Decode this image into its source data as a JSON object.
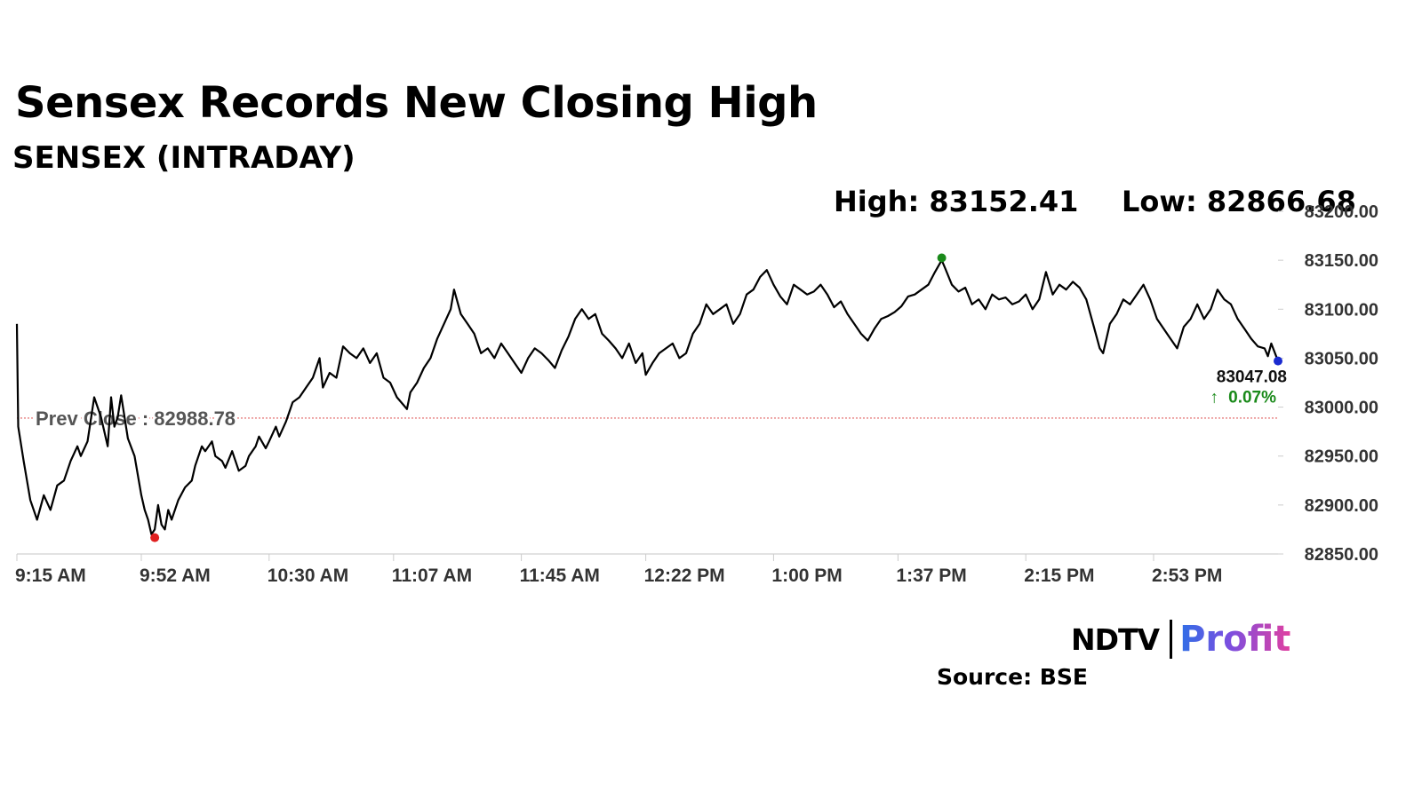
{
  "title": "Sensex Records New Closing High",
  "subtitle": "SENSEX (INTRADAY)",
  "stats": {
    "high": "High: 83152.41",
    "low": "Low: 82866.68"
  },
  "chart_data": {
    "type": "line",
    "series_color": "#000000",
    "y_ticks": [
      "82850.00",
      "82900.00",
      "82950.00",
      "83000.00",
      "83050.00",
      "83100.00",
      "83150.00",
      "83200.00"
    ],
    "ylim": [
      82850,
      83200
    ],
    "x_ticks": [
      "9:15 AM",
      "9:52 AM",
      "10:30 AM",
      "11:07 AM",
      "11:45 AM",
      "12:22 PM",
      "1:00 PM",
      "1:37 PM",
      "2:15 PM",
      "2:53 PM"
    ],
    "x_tick_minutes": [
      0,
      37,
      75,
      112,
      150,
      187,
      225,
      262,
      300,
      338
    ],
    "x_range_minutes": [
      0,
      375
    ],
    "points": [
      [
        0,
        83085
      ],
      [
        0.4,
        82980
      ],
      [
        2,
        82945
      ],
      [
        4,
        82905
      ],
      [
        6,
        82885
      ],
      [
        8,
        82910
      ],
      [
        10,
        82895
      ],
      [
        12,
        82920
      ],
      [
        14,
        82925
      ],
      [
        16,
        82945
      ],
      [
        18,
        82960
      ],
      [
        19,
        82950
      ],
      [
        21,
        82965
      ],
      [
        23,
        83010
      ],
      [
        25,
        82990
      ],
      [
        26,
        82975
      ],
      [
        27,
        82960
      ],
      [
        28,
        83010
      ],
      [
        29,
        82980
      ],
      [
        30,
        82990
      ],
      [
        31,
        83012
      ],
      [
        33,
        82968
      ],
      [
        35,
        82950
      ],
      [
        37,
        82910
      ],
      [
        38,
        82895
      ],
      [
        39,
        82885
      ],
      [
        40,
        82870
      ],
      [
        41,
        82875
      ],
      [
        42,
        82900
      ],
      [
        43,
        82880
      ],
      [
        44,
        82875
      ],
      [
        45,
        82895
      ],
      [
        46,
        82885
      ],
      [
        48,
        82905
      ],
      [
        50,
        82918
      ],
      [
        52,
        82925
      ],
      [
        53,
        82940
      ],
      [
        55,
        82960
      ],
      [
        56,
        82955
      ],
      [
        58,
        82965
      ],
      [
        59,
        82950
      ],
      [
        61,
        82945
      ],
      [
        62,
        82938
      ],
      [
        64,
        82955
      ],
      [
        66,
        82935
      ],
      [
        68,
        82940
      ],
      [
        69,
        82950
      ],
      [
        71,
        82960
      ],
      [
        72,
        82970
      ],
      [
        74,
        82958
      ],
      [
        75,
        82965
      ],
      [
        77,
        82980
      ],
      [
        78,
        82970
      ],
      [
        80,
        82985
      ],
      [
        82,
        83005
      ],
      [
        84,
        83010
      ],
      [
        86,
        83020
      ],
      [
        88,
        83030
      ],
      [
        90,
        83050
      ],
      [
        91,
        83020
      ],
      [
        93,
        83035
      ],
      [
        95,
        83030
      ],
      [
        97,
        83062
      ],
      [
        99,
        83055
      ],
      [
        101,
        83050
      ],
      [
        103,
        83060
      ],
      [
        105,
        83045
      ],
      [
        107,
        83055
      ],
      [
        109,
        83030
      ],
      [
        111,
        83025
      ],
      [
        113,
        83010
      ],
      [
        115,
        83002
      ],
      [
        116,
        82998
      ],
      [
        117,
        83015
      ],
      [
        119,
        83025
      ],
      [
        121,
        83040
      ],
      [
        123,
        83050
      ],
      [
        125,
        83070
      ],
      [
        127,
        83085
      ],
      [
        129,
        83100
      ],
      [
        130,
        83120
      ],
      [
        132,
        83095
      ],
      [
        134,
        83085
      ],
      [
        136,
        83075
      ],
      [
        138,
        83055
      ],
      [
        140,
        83060
      ],
      [
        142,
        83050
      ],
      [
        144,
        83065
      ],
      [
        146,
        83055
      ],
      [
        148,
        83045
      ],
      [
        150,
        83035
      ],
      [
        152,
        83050
      ],
      [
        154,
        83060
      ],
      [
        156,
        83055
      ],
      [
        158,
        83048
      ],
      [
        160,
        83040
      ],
      [
        162,
        83058
      ],
      [
        164,
        83072
      ],
      [
        166,
        83090
      ],
      [
        168,
        83100
      ],
      [
        170,
        83090
      ],
      [
        172,
        83095
      ],
      [
        174,
        83075
      ],
      [
        176,
        83068
      ],
      [
        178,
        83060
      ],
      [
        180,
        83050
      ],
      [
        182,
        83065
      ],
      [
        184,
        83045
      ],
      [
        186,
        83055
      ],
      [
        187,
        83033
      ],
      [
        189,
        83045
      ],
      [
        191,
        83055
      ],
      [
        193,
        83060
      ],
      [
        195,
        83065
      ],
      [
        197,
        83050
      ],
      [
        199,
        83055
      ],
      [
        201,
        83075
      ],
      [
        203,
        83085
      ],
      [
        205,
        83105
      ],
      [
        207,
        83095
      ],
      [
        209,
        83100
      ],
      [
        211,
        83105
      ],
      [
        213,
        83085
      ],
      [
        215,
        83095
      ],
      [
        217,
        83115
      ],
      [
        219,
        83120
      ],
      [
        221,
        83133
      ],
      [
        223,
        83140
      ],
      [
        225,
        83125
      ],
      [
        227,
        83113
      ],
      [
        229,
        83105
      ],
      [
        231,
        83125
      ],
      [
        233,
        83120
      ],
      [
        235,
        83115
      ],
      [
        237,
        83118
      ],
      [
        239,
        83125
      ],
      [
        241,
        83115
      ],
      [
        243,
        83102
      ],
      [
        245,
        83108
      ],
      [
        247,
        83095
      ],
      [
        249,
        83085
      ],
      [
        251,
        83075
      ],
      [
        253,
        83068
      ],
      [
        255,
        83080
      ],
      [
        257,
        83090
      ],
      [
        259,
        83093
      ],
      [
        261,
        83097
      ],
      [
        263,
        83103
      ],
      [
        265,
        83113
      ],
      [
        267,
        83115
      ],
      [
        269,
        83120
      ],
      [
        271,
        83125
      ],
      [
        273,
        83138
      ],
      [
        275,
        83150
      ],
      [
        276,
        83142
      ],
      [
        278,
        83125
      ],
      [
        280,
        83118
      ],
      [
        282,
        83122
      ],
      [
        284,
        83105
      ],
      [
        286,
        83110
      ],
      [
        288,
        83100
      ],
      [
        290,
        83115
      ],
      [
        292,
        83110
      ],
      [
        294,
        83112
      ],
      [
        296,
        83105
      ],
      [
        298,
        83108
      ],
      [
        300,
        83115
      ],
      [
        302,
        83100
      ],
      [
        304,
        83110
      ],
      [
        306,
        83138
      ],
      [
        308,
        83115
      ],
      [
        310,
        83125
      ],
      [
        312,
        83120
      ],
      [
        314,
        83128
      ],
      [
        316,
        83122
      ],
      [
        318,
        83110
      ],
      [
        320,
        83085
      ],
      [
        322,
        83060
      ],
      [
        323,
        83055
      ],
      [
        325,
        83085
      ],
      [
        327,
        83095
      ],
      [
        329,
        83110
      ],
      [
        331,
        83105
      ],
      [
        333,
        83115
      ],
      [
        335,
        83125
      ],
      [
        337,
        83110
      ],
      [
        339,
        83090
      ],
      [
        341,
        83080
      ],
      [
        343,
        83070
      ],
      [
        345,
        83060
      ],
      [
        347,
        83082
      ],
      [
        349,
        83090
      ],
      [
        351,
        83105
      ],
      [
        353,
        83090
      ],
      [
        355,
        83100
      ],
      [
        357,
        83120
      ],
      [
        359,
        83110
      ],
      [
        361,
        83105
      ],
      [
        363,
        83090
      ],
      [
        365,
        83080
      ],
      [
        367,
        83070
      ],
      [
        369,
        83062
      ],
      [
        371,
        83060
      ],
      [
        372,
        83052
      ],
      [
        373,
        83065
      ],
      [
        375,
        83047
      ]
    ],
    "prev_close": {
      "label": "Prev Close : 82988.78",
      "value": 82988.78,
      "color": "#e06060"
    },
    "high_marker": {
      "value": 83152.41,
      "minute": 275,
      "color": "#1a8a1a"
    },
    "low_marker": {
      "value": 82866.68,
      "minute": 41,
      "color": "#e02020"
    },
    "last": {
      "value": 83047.08,
      "label": "83047.08",
      "change": "0.07%",
      "change_arrow": "↑",
      "change_color": "#1a8a1a",
      "marker_color": "#1a2bd0"
    }
  },
  "logo": {
    "ndtv": "NDTV",
    "profit": "Profit"
  },
  "source": "Source: BSE"
}
